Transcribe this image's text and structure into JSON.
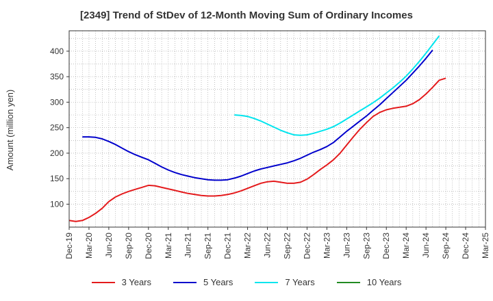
{
  "chart_data": {
    "type": "line",
    "title": "[2349]  Trend of StDev of 12-Month Moving Sum of Ordinary Incomes",
    "xlabel": "",
    "ylabel": "Amount (million yen)",
    "ylim": [
      55,
      440
    ],
    "yticks": [
      100,
      150,
      200,
      250,
      300,
      350,
      400
    ],
    "xlim": [
      0,
      63
    ],
    "xtick_labels": [
      "Dec-19",
      "Mar-20",
      "Jun-20",
      "Sep-20",
      "Dec-20",
      "Mar-21",
      "Jun-21",
      "Sep-21",
      "Dec-21",
      "Mar-22",
      "Jun-22",
      "Sep-22",
      "Dec-22",
      "Mar-23",
      "Jun-23",
      "Sep-23",
      "Dec-23",
      "Mar-24",
      "Jun-24",
      "Sep-24",
      "Dec-24",
      "Mar-25"
    ],
    "grid": true,
    "legend_position": "bottom",
    "series": [
      {
        "name": "3 Years",
        "color": "#e41a1c",
        "points": [
          [
            0,
            68
          ],
          [
            1,
            66
          ],
          [
            2,
            68
          ],
          [
            3,
            74
          ],
          [
            4,
            82
          ],
          [
            5,
            92
          ],
          [
            6,
            105
          ],
          [
            7,
            114
          ],
          [
            8,
            120
          ],
          [
            9,
            125
          ],
          [
            10,
            129
          ],
          [
            11,
            133
          ],
          [
            12,
            137
          ],
          [
            13,
            136
          ],
          [
            14,
            133
          ],
          [
            15,
            130
          ],
          [
            16,
            127
          ],
          [
            17,
            124
          ],
          [
            18,
            121
          ],
          [
            19,
            119
          ],
          [
            20,
            117
          ],
          [
            21,
            116
          ],
          [
            22,
            116
          ],
          [
            23,
            117
          ],
          [
            24,
            119
          ],
          [
            25,
            122
          ],
          [
            26,
            126
          ],
          [
            27,
            131
          ],
          [
            28,
            136
          ],
          [
            29,
            141
          ],
          [
            30,
            144
          ],
          [
            31,
            145
          ],
          [
            32,
            143
          ],
          [
            33,
            141
          ],
          [
            34,
            141
          ],
          [
            35,
            143
          ],
          [
            36,
            149
          ],
          [
            37,
            158
          ],
          [
            38,
            168
          ],
          [
            39,
            177
          ],
          [
            40,
            187
          ],
          [
            41,
            200
          ],
          [
            42,
            216
          ],
          [
            43,
            232
          ],
          [
            44,
            247
          ],
          [
            45,
            260
          ],
          [
            46,
            272
          ],
          [
            47,
            280
          ],
          [
            48,
            285
          ],
          [
            49,
            288
          ],
          [
            50,
            290
          ],
          [
            51,
            292
          ],
          [
            52,
            297
          ],
          [
            53,
            305
          ],
          [
            54,
            316
          ],
          [
            55,
            329
          ],
          [
            56,
            343
          ],
          [
            57,
            347
          ]
        ]
      },
      {
        "name": "5 Years",
        "color": "#0000cc",
        "points": [
          [
            2,
            232
          ],
          [
            3,
            232
          ],
          [
            4,
            231
          ],
          [
            5,
            228
          ],
          [
            6,
            223
          ],
          [
            7,
            217
          ],
          [
            8,
            210
          ],
          [
            9,
            203
          ],
          [
            10,
            197
          ],
          [
            11,
            192
          ],
          [
            12,
            187
          ],
          [
            13,
            180
          ],
          [
            14,
            173
          ],
          [
            15,
            167
          ],
          [
            16,
            162
          ],
          [
            17,
            158
          ],
          [
            18,
            155
          ],
          [
            19,
            152
          ],
          [
            20,
            150
          ],
          [
            21,
            148
          ],
          [
            22,
            147
          ],
          [
            23,
            147
          ],
          [
            24,
            148
          ],
          [
            25,
            151
          ],
          [
            26,
            155
          ],
          [
            27,
            160
          ],
          [
            28,
            165
          ],
          [
            29,
            169
          ],
          [
            30,
            172
          ],
          [
            31,
            175
          ],
          [
            32,
            178
          ],
          [
            33,
            181
          ],
          [
            34,
            185
          ],
          [
            35,
            190
          ],
          [
            36,
            196
          ],
          [
            37,
            202
          ],
          [
            38,
            207
          ],
          [
            39,
            213
          ],
          [
            40,
            221
          ],
          [
            41,
            232
          ],
          [
            42,
            243
          ],
          [
            43,
            253
          ],
          [
            44,
            263
          ],
          [
            45,
            273
          ],
          [
            46,
            284
          ],
          [
            47,
            295
          ],
          [
            48,
            307
          ],
          [
            49,
            319
          ],
          [
            50,
            331
          ],
          [
            51,
            343
          ],
          [
            52,
            357
          ],
          [
            53,
            371
          ],
          [
            54,
            386
          ],
          [
            55,
            402
          ]
        ]
      },
      {
        "name": "7 Years",
        "color": "#00e5ee",
        "points": [
          [
            25,
            275
          ],
          [
            26,
            274
          ],
          [
            27,
            272
          ],
          [
            28,
            268
          ],
          [
            29,
            263
          ],
          [
            30,
            257
          ],
          [
            31,
            251
          ],
          [
            32,
            245
          ],
          [
            33,
            240
          ],
          [
            34,
            236
          ],
          [
            35,
            235
          ],
          [
            36,
            236
          ],
          [
            37,
            239
          ],
          [
            38,
            243
          ],
          [
            39,
            247
          ],
          [
            40,
            252
          ],
          [
            41,
            259
          ],
          [
            42,
            267
          ],
          [
            43,
            275
          ],
          [
            44,
            283
          ],
          [
            45,
            291
          ],
          [
            46,
            299
          ],
          [
            47,
            308
          ],
          [
            48,
            318
          ],
          [
            49,
            328
          ],
          [
            50,
            339
          ],
          [
            51,
            351
          ],
          [
            52,
            365
          ],
          [
            53,
            380
          ],
          [
            54,
            396
          ],
          [
            55,
            413
          ],
          [
            56,
            430
          ]
        ]
      },
      {
        "name": "10 Years",
        "color": "#228b22",
        "points": []
      }
    ]
  }
}
